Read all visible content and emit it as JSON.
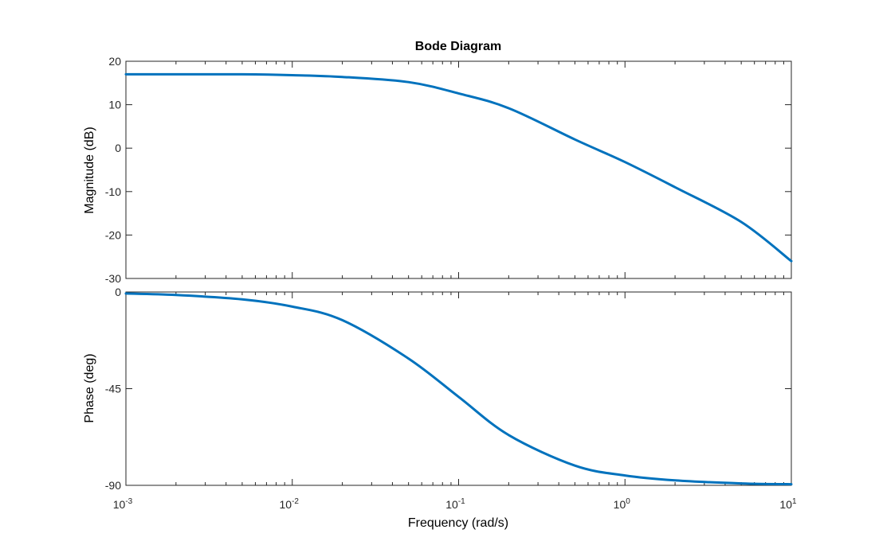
{
  "chart_data": {
    "type": "line",
    "title": "Bode Diagram",
    "xlabel": "Frequency  (rad/s)",
    "xscale": "log",
    "xlim": [
      0.001,
      10
    ],
    "x_tick_labels": [
      {
        "base": "10",
        "exp": "-3"
      },
      {
        "base": "10",
        "exp": "-2"
      },
      {
        "base": "10",
        "exp": "-1"
      },
      {
        "base": "10",
        "exp": "0"
      },
      {
        "base": "10",
        "exp": "1"
      }
    ],
    "grid": false,
    "line_color": "#0072BD",
    "subplots": [
      {
        "name": "magnitude",
        "ylabel": "Magnitude (dB)",
        "ylim": [
          -30,
          20
        ],
        "yticks": [
          "20",
          "10",
          "0",
          "-10",
          "-20",
          "-30"
        ],
        "x": [
          0.001,
          0.002,
          0.005,
          0.01,
          0.02,
          0.05,
          0.1,
          0.2,
          0.5,
          1,
          2,
          5,
          10
        ],
        "y": [
          17.0,
          17.0,
          17.0,
          16.8,
          16.4,
          15.2,
          12.6,
          9.2,
          2.0,
          -3.2,
          -9.0,
          -17.0,
          -26.0
        ]
      },
      {
        "name": "phase",
        "ylabel": "Phase (deg)",
        "ylim": [
          -90,
          0
        ],
        "yticks": [
          "0",
          "-45",
          "-90"
        ],
        "x": [
          0.001,
          0.002,
          0.005,
          0.01,
          0.02,
          0.05,
          0.1,
          0.2,
          0.5,
          1,
          2,
          5,
          10
        ],
        "y": [
          -0.7,
          -1.4,
          -3.4,
          -6.8,
          -13.1,
          -31.0,
          -48.8,
          -66.6,
          -80.8,
          -85.4,
          -87.7,
          -89.1,
          -89.5
        ]
      }
    ]
  }
}
